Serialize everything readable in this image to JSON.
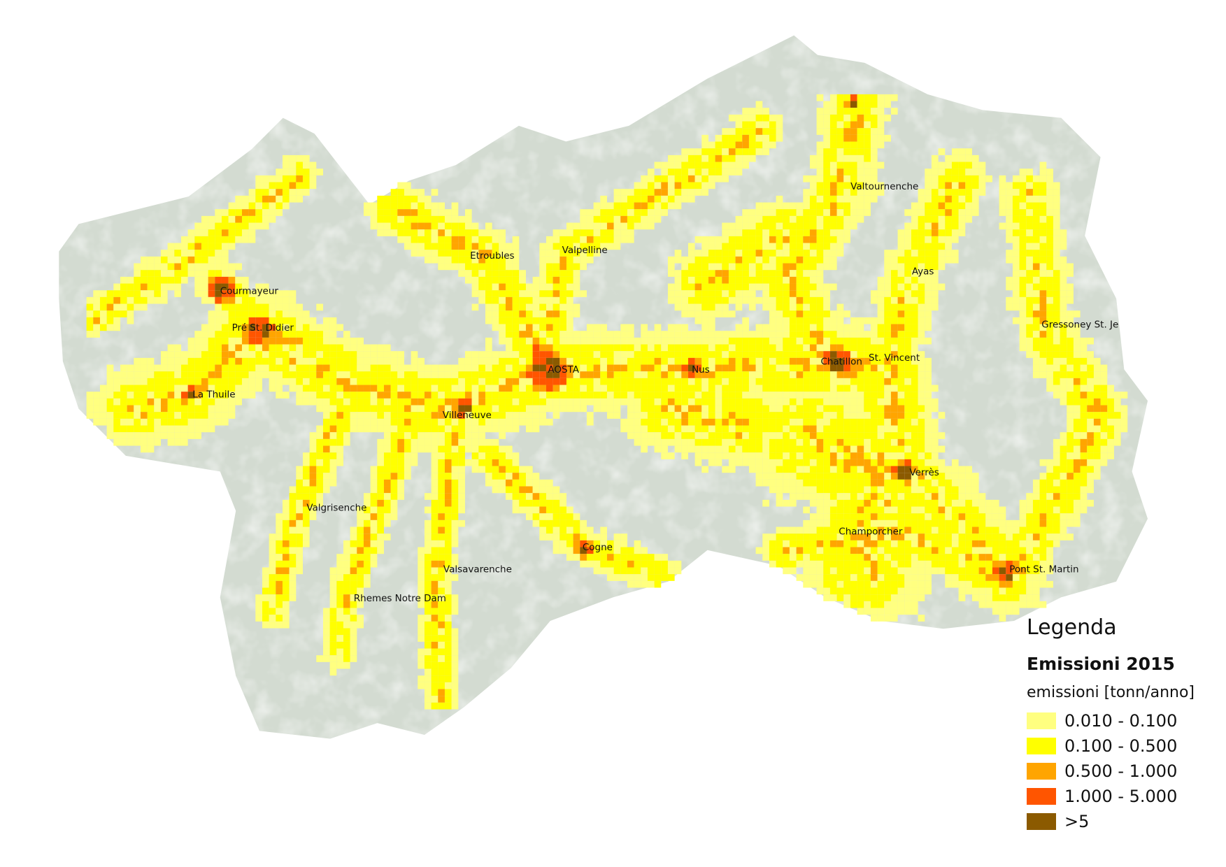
{
  "legend": {
    "title": "Legenda",
    "layer": "Emissioni 2015",
    "unit": "emissioni [tonn/anno]",
    "classes": [
      {
        "label": "0.010 - 0.100",
        "color": "#ffff80"
      },
      {
        "label": "0.100 - 0.500",
        "color": "#ffff00"
      },
      {
        "label": "0.500 - 1.000",
        "color": "#ffa500"
      },
      {
        "label": "1.000 - 5.000",
        "color": "#ff5500"
      },
      {
        "label": ">5",
        "color": "#8b5a00"
      }
    ]
  },
  "towns": [
    "Courmayeur",
    "Pré St. Didier",
    "La Thuile",
    "Etroubles",
    "Valpelline",
    "Valtournenche",
    "Ayas",
    "Gressoney St. Je",
    "AOSTA",
    "Nus",
    "Chatillon",
    "St. Vincent",
    "Villeneuve",
    "Verrès",
    "Valgrisenche",
    "Cogne",
    "Champorcher",
    "Valsavarenche",
    "Rhemes Notre Dam",
    "Pont St. Martin"
  ],
  "colors": {
    "terrain": "#d3dbd1",
    "terrain_highlight": "#e8ede6"
  }
}
